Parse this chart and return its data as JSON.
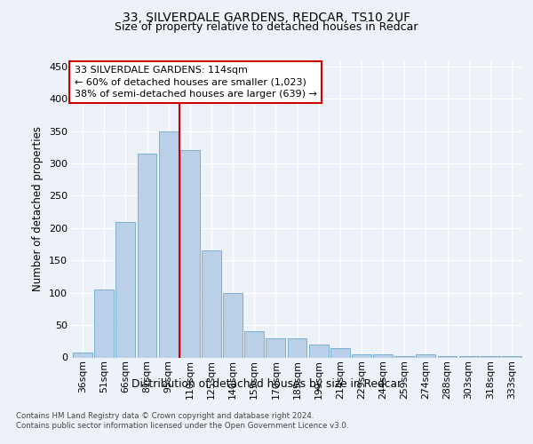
{
  "title_line1": "33, SILVERDALE GARDENS, REDCAR, TS10 2UF",
  "title_line2": "Size of property relative to detached houses in Redcar",
  "xlabel": "Distribution of detached houses by size in Redcar",
  "ylabel": "Number of detached properties",
  "categories": [
    "36sqm",
    "51sqm",
    "66sqm",
    "81sqm",
    "95sqm",
    "110sqm",
    "125sqm",
    "140sqm",
    "155sqm",
    "170sqm",
    "185sqm",
    "199sqm",
    "214sqm",
    "229sqm",
    "244sqm",
    "259sqm",
    "274sqm",
    "288sqm",
    "303sqm",
    "318sqm",
    "333sqm"
  ],
  "values": [
    7,
    105,
    210,
    315,
    350,
    320,
    165,
    100,
    40,
    30,
    30,
    20,
    15,
    5,
    5,
    2,
    5,
    2,
    2,
    2,
    2
  ],
  "bar_color": "#bad0e8",
  "bar_edgecolor": "#7aafd4",
  "vline_x": 4.5,
  "annotation_text": "33 SILVERDALE GARDENS: 114sqm\n← 60% of detached houses are smaller (1,023)\n38% of semi-detached houses are larger (639) →",
  "annotation_box_color": "#ffffff",
  "annotation_box_edgecolor": "#cc0000",
  "footer_line1": "Contains HM Land Registry data © Crown copyright and database right 2024.",
  "footer_line2": "Contains public sector information licensed under the Open Government Licence v3.0.",
  "ylim": [
    0,
    460
  ],
  "yticks": [
    0,
    50,
    100,
    150,
    200,
    250,
    300,
    350,
    400,
    450
  ],
  "background_color": "#edf2f9",
  "grid_color": "#ffffff",
  "vline_color": "#cc0000",
  "title_fontsize": 10,
  "subtitle_fontsize": 9
}
